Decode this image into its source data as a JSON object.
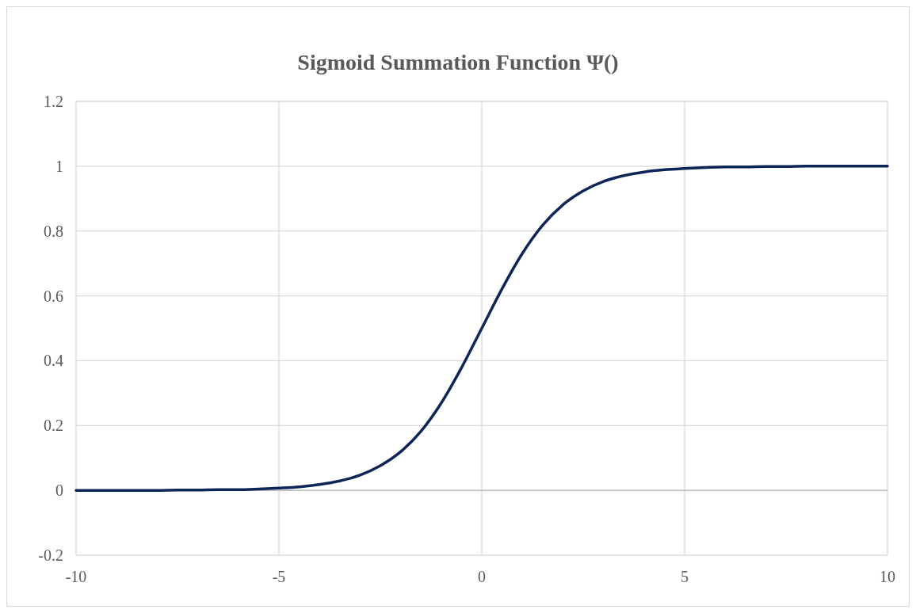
{
  "chart_data": {
    "type": "line",
    "title": "Sigmoid Summation Function Ψ()",
    "x": [
      -10,
      -9.5,
      -9,
      -8.5,
      -8,
      -7.5,
      -7,
      -6.5,
      -6,
      -5.5,
      -5,
      -4.5,
      -4,
      -3.5,
      -3,
      -2.5,
      -2,
      -1.5,
      -1,
      -0.5,
      0,
      0.5,
      1,
      1.5,
      2,
      2.5,
      3,
      3.5,
      4,
      4.5,
      5,
      5.5,
      6,
      6.5,
      7,
      7.5,
      8,
      8.5,
      9,
      9.5,
      10
    ],
    "series": [
      {
        "color": "#0d2559",
        "values": [
          0,
          0,
          0,
          0,
          0,
          0.001,
          0.001,
          0.002,
          0.002,
          0.004,
          0.007,
          0.011,
          0.018,
          0.029,
          0.047,
          0.076,
          0.119,
          0.182,
          0.269,
          0.378,
          0.5,
          0.622,
          0.731,
          0.818,
          0.881,
          0.924,
          0.953,
          0.971,
          0.982,
          0.989,
          0.993,
          0.996,
          0.998,
          0.998,
          0.999,
          0.999,
          1,
          1,
          1,
          1,
          1
        ]
      }
    ],
    "xlim": [
      -10,
      10
    ],
    "xticks": [
      -10,
      -5,
      0,
      5,
      10
    ],
    "ylim": [
      -0.2,
      1.2
    ],
    "yticks": [
      -0.2,
      0,
      0.2,
      0.4,
      0.6,
      0.8,
      1,
      1.2
    ],
    "grid": true,
    "marker": "none",
    "line_style": "solid"
  }
}
